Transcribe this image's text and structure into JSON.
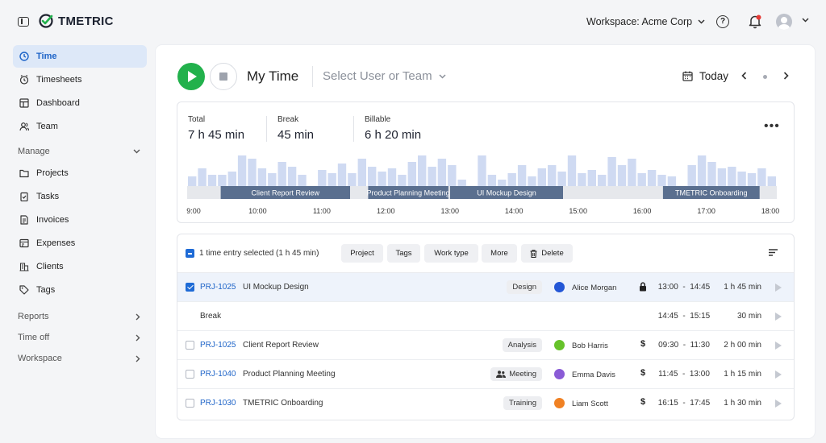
{
  "app": {
    "name": "TMETRIC"
  },
  "header": {
    "workspace_label": "Workspace: Acme Corp"
  },
  "sidebar": {
    "items": [
      {
        "label": "Time",
        "icon": "clock-icon",
        "active": true
      },
      {
        "label": "Timesheets",
        "icon": "timesheets-icon"
      },
      {
        "label": "Dashboard",
        "icon": "dashboard-icon"
      },
      {
        "label": "Team",
        "icon": "team-icon"
      }
    ],
    "manage_label": "Manage",
    "manage_items": [
      {
        "label": "Projects",
        "icon": "folder-icon"
      },
      {
        "label": "Tasks",
        "icon": "tasks-icon"
      },
      {
        "label": "Invoices",
        "icon": "invoice-icon"
      },
      {
        "label": "Expenses",
        "icon": "expenses-icon"
      },
      {
        "label": "Clients",
        "icon": "clients-icon"
      },
      {
        "label": "Tags",
        "icon": "tag-icon"
      }
    ],
    "sections": [
      {
        "label": "Reports"
      },
      {
        "label": "Time off"
      },
      {
        "label": "Workspace"
      }
    ]
  },
  "main": {
    "title": "My Time",
    "user_select": "Select User or Team",
    "date_label": "Today"
  },
  "summary": {
    "total_label": "Total",
    "total_value": "7 h 45 min",
    "break_label": "Break",
    "break_value": "45 min",
    "billable_label": "Billable",
    "billable_value": "6 h 20 min"
  },
  "chart_data": {
    "type": "bar",
    "x_ticks": [
      "9:00",
      "10:00",
      "11:00",
      "12:00",
      "13:00",
      "14:00",
      "15:00",
      "16:00",
      "17:00",
      "18:00"
    ],
    "activity_levels": [
      0.3,
      0.55,
      0.35,
      0.35,
      0.45,
      0.95,
      0.85,
      0.55,
      0.4,
      0.75,
      0.6,
      0.35,
      0,
      0.5,
      0.4,
      0.7,
      0.4,
      0.85,
      0.6,
      0.45,
      0.55,
      0.35,
      0.75,
      0.95,
      0.6,
      0.85,
      0.65,
      0.2,
      0,
      0.95,
      0.35,
      0.2,
      0.4,
      0.65,
      0.3,
      0.55,
      0.65,
      0.45,
      0.95,
      0.4,
      0.5,
      0.35,
      0.9,
      0.65,
      0.85,
      0.4,
      0.5,
      0.35,
      0.3,
      0,
      0.65,
      0.95,
      0.75,
      0.55,
      0.6,
      0.45,
      0.4,
      0.55,
      0.3
    ],
    "segments": [
      {
        "label": "Client Report Review",
        "start": "9:30",
        "end": "11:30"
      },
      {
        "label": "Product Planning Meeting",
        "start": "11:45",
        "end": "13:00"
      },
      {
        "label": "UI Mockup Design",
        "start": "13:00",
        "end": "14:45"
      },
      {
        "label": "TMETRIC Onboarding",
        "start": "16:15",
        "end": "17:45"
      }
    ],
    "segment_color": "#5a6f8f",
    "bar_color": "#cfdaf2"
  },
  "toolbar": {
    "selected_text": "1 time entry selected (1 h 45 min)",
    "buttons": [
      "Project",
      "Tags",
      "Work type",
      "More",
      "Delete"
    ]
  },
  "entries": [
    {
      "checked": true,
      "code": "PRJ-1025",
      "description": "UI Mockup Design",
      "tag": "Design",
      "user": "Alice Morgan",
      "user_color": "#2457d6",
      "marker": "lock",
      "start": "13:00",
      "end": "14:45",
      "duration": "1 h 45 min"
    },
    {
      "break": true,
      "description": "Break",
      "start": "14:45",
      "end": "15:15",
      "duration": "30 min"
    },
    {
      "code": "PRJ-1025",
      "description": "Client Report Review",
      "tag": "Analysis",
      "user": "Bob Harris",
      "user_color": "#66c22a",
      "marker": "$",
      "start": "09:30",
      "end": "11:30",
      "duration": "2 h 00 min"
    },
    {
      "code": "PRJ-1040",
      "description": "Product Planning Meeting",
      "tag": "Meeting",
      "tag_icon": "people-icon",
      "user": "Emma Davis",
      "user_color": "#8a5bd6",
      "marker": "$",
      "start": "11:45",
      "end": "13:00",
      "duration": "1 h 15 min"
    },
    {
      "code": "PRJ-1030",
      "description": "TMETRIC Onboarding",
      "tag": "Training",
      "user": "Liam Scott",
      "user_color": "#f08123",
      "marker": "$",
      "start": "16:15",
      "end": "17:45",
      "duration": "1 h 30 min"
    }
  ]
}
